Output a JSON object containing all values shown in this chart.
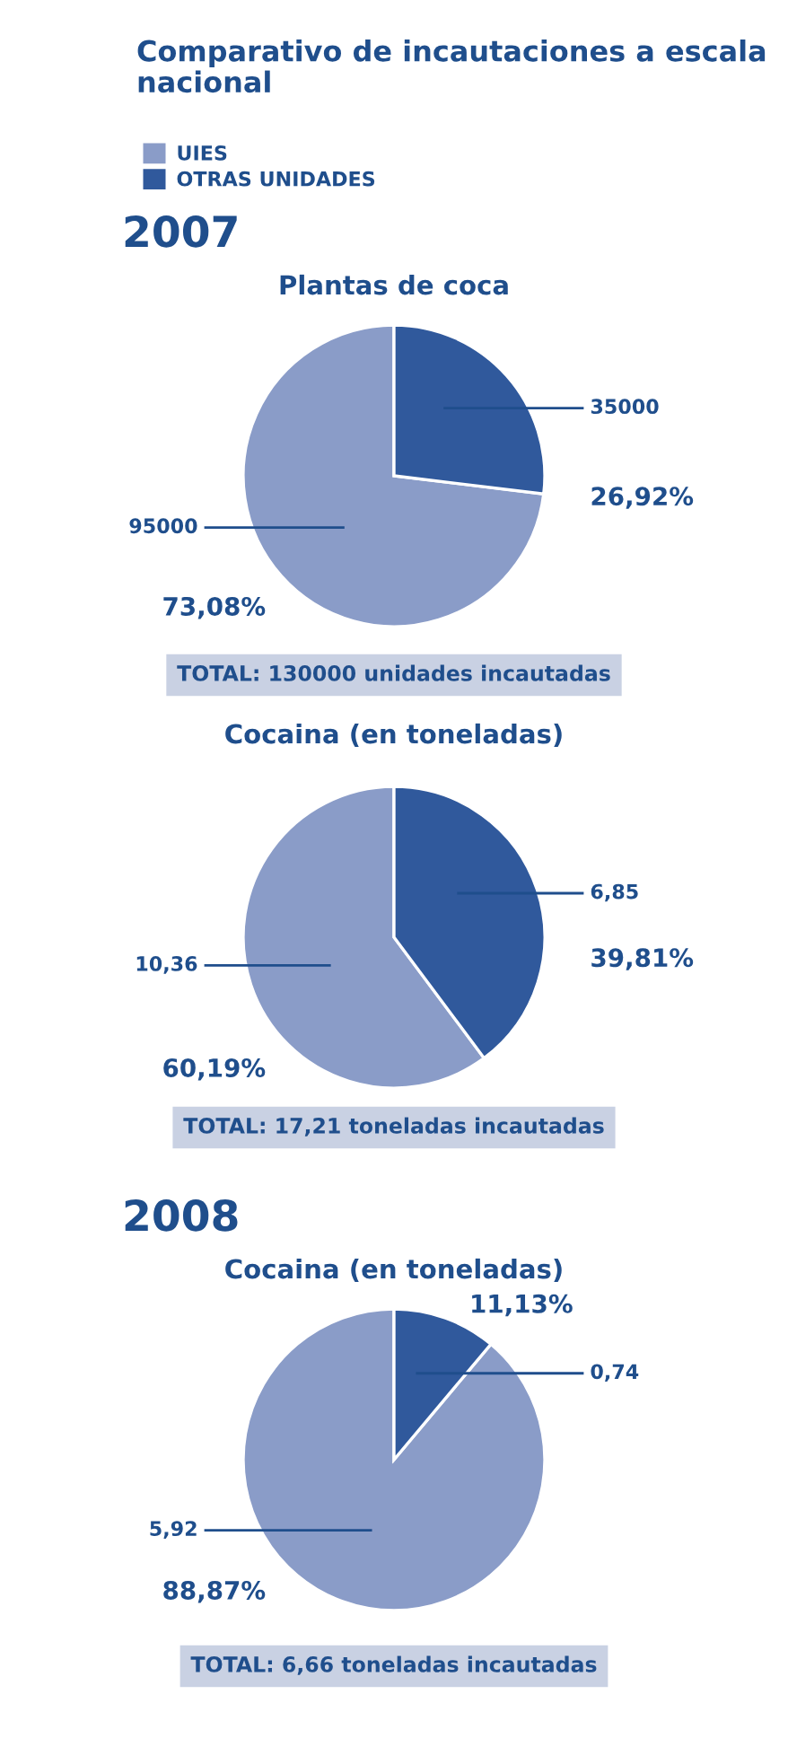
{
  "chart_data": [
    {
      "type": "other",
      "title": "Comparativo de incautaciones a escala nacional"
    },
    {
      "type": "pie",
      "subtitle": "2007",
      "title": "Plantas de coca",
      "legend": "top left",
      "categories": [
        "UIES",
        "OTRAS UNIDADES"
      ],
      "values": [
        95000,
        35000
      ],
      "value_labels": [
        "95000",
        "35000"
      ],
      "colors": [
        "#8a9cc8",
        "#30599c"
      ],
      "annotations": [
        "73,08%",
        "26,92%",
        "TOTAL: 130000 unidades incautadas"
      ]
    },
    {
      "type": "pie",
      "title": "Cocaina (en toneladas)",
      "values": [
        10.36,
        6.85
      ],
      "value_labels": [
        "10,36",
        "6,85"
      ],
      "colors": [
        "#8a9cc8",
        "#30599c"
      ],
      "annotations": [
        "60,19%",
        "39,81%",
        "TOTAL: 17,21 toneladas incautadas"
      ]
    },
    {
      "type": "pie",
      "subtitle": "2008",
      "title": "Cocaina (en toneladas)",
      "values": [
        5.92,
        0.74
      ],
      "value_labels": [
        "5,92",
        "0,74"
      ],
      "colors": [
        "#8a9cc8",
        "#30599c"
      ],
      "annotations": [
        "88,87%",
        "11,13%",
        "TOTAL: 6,66 toneladas incautadas"
      ]
    }
  ]
}
